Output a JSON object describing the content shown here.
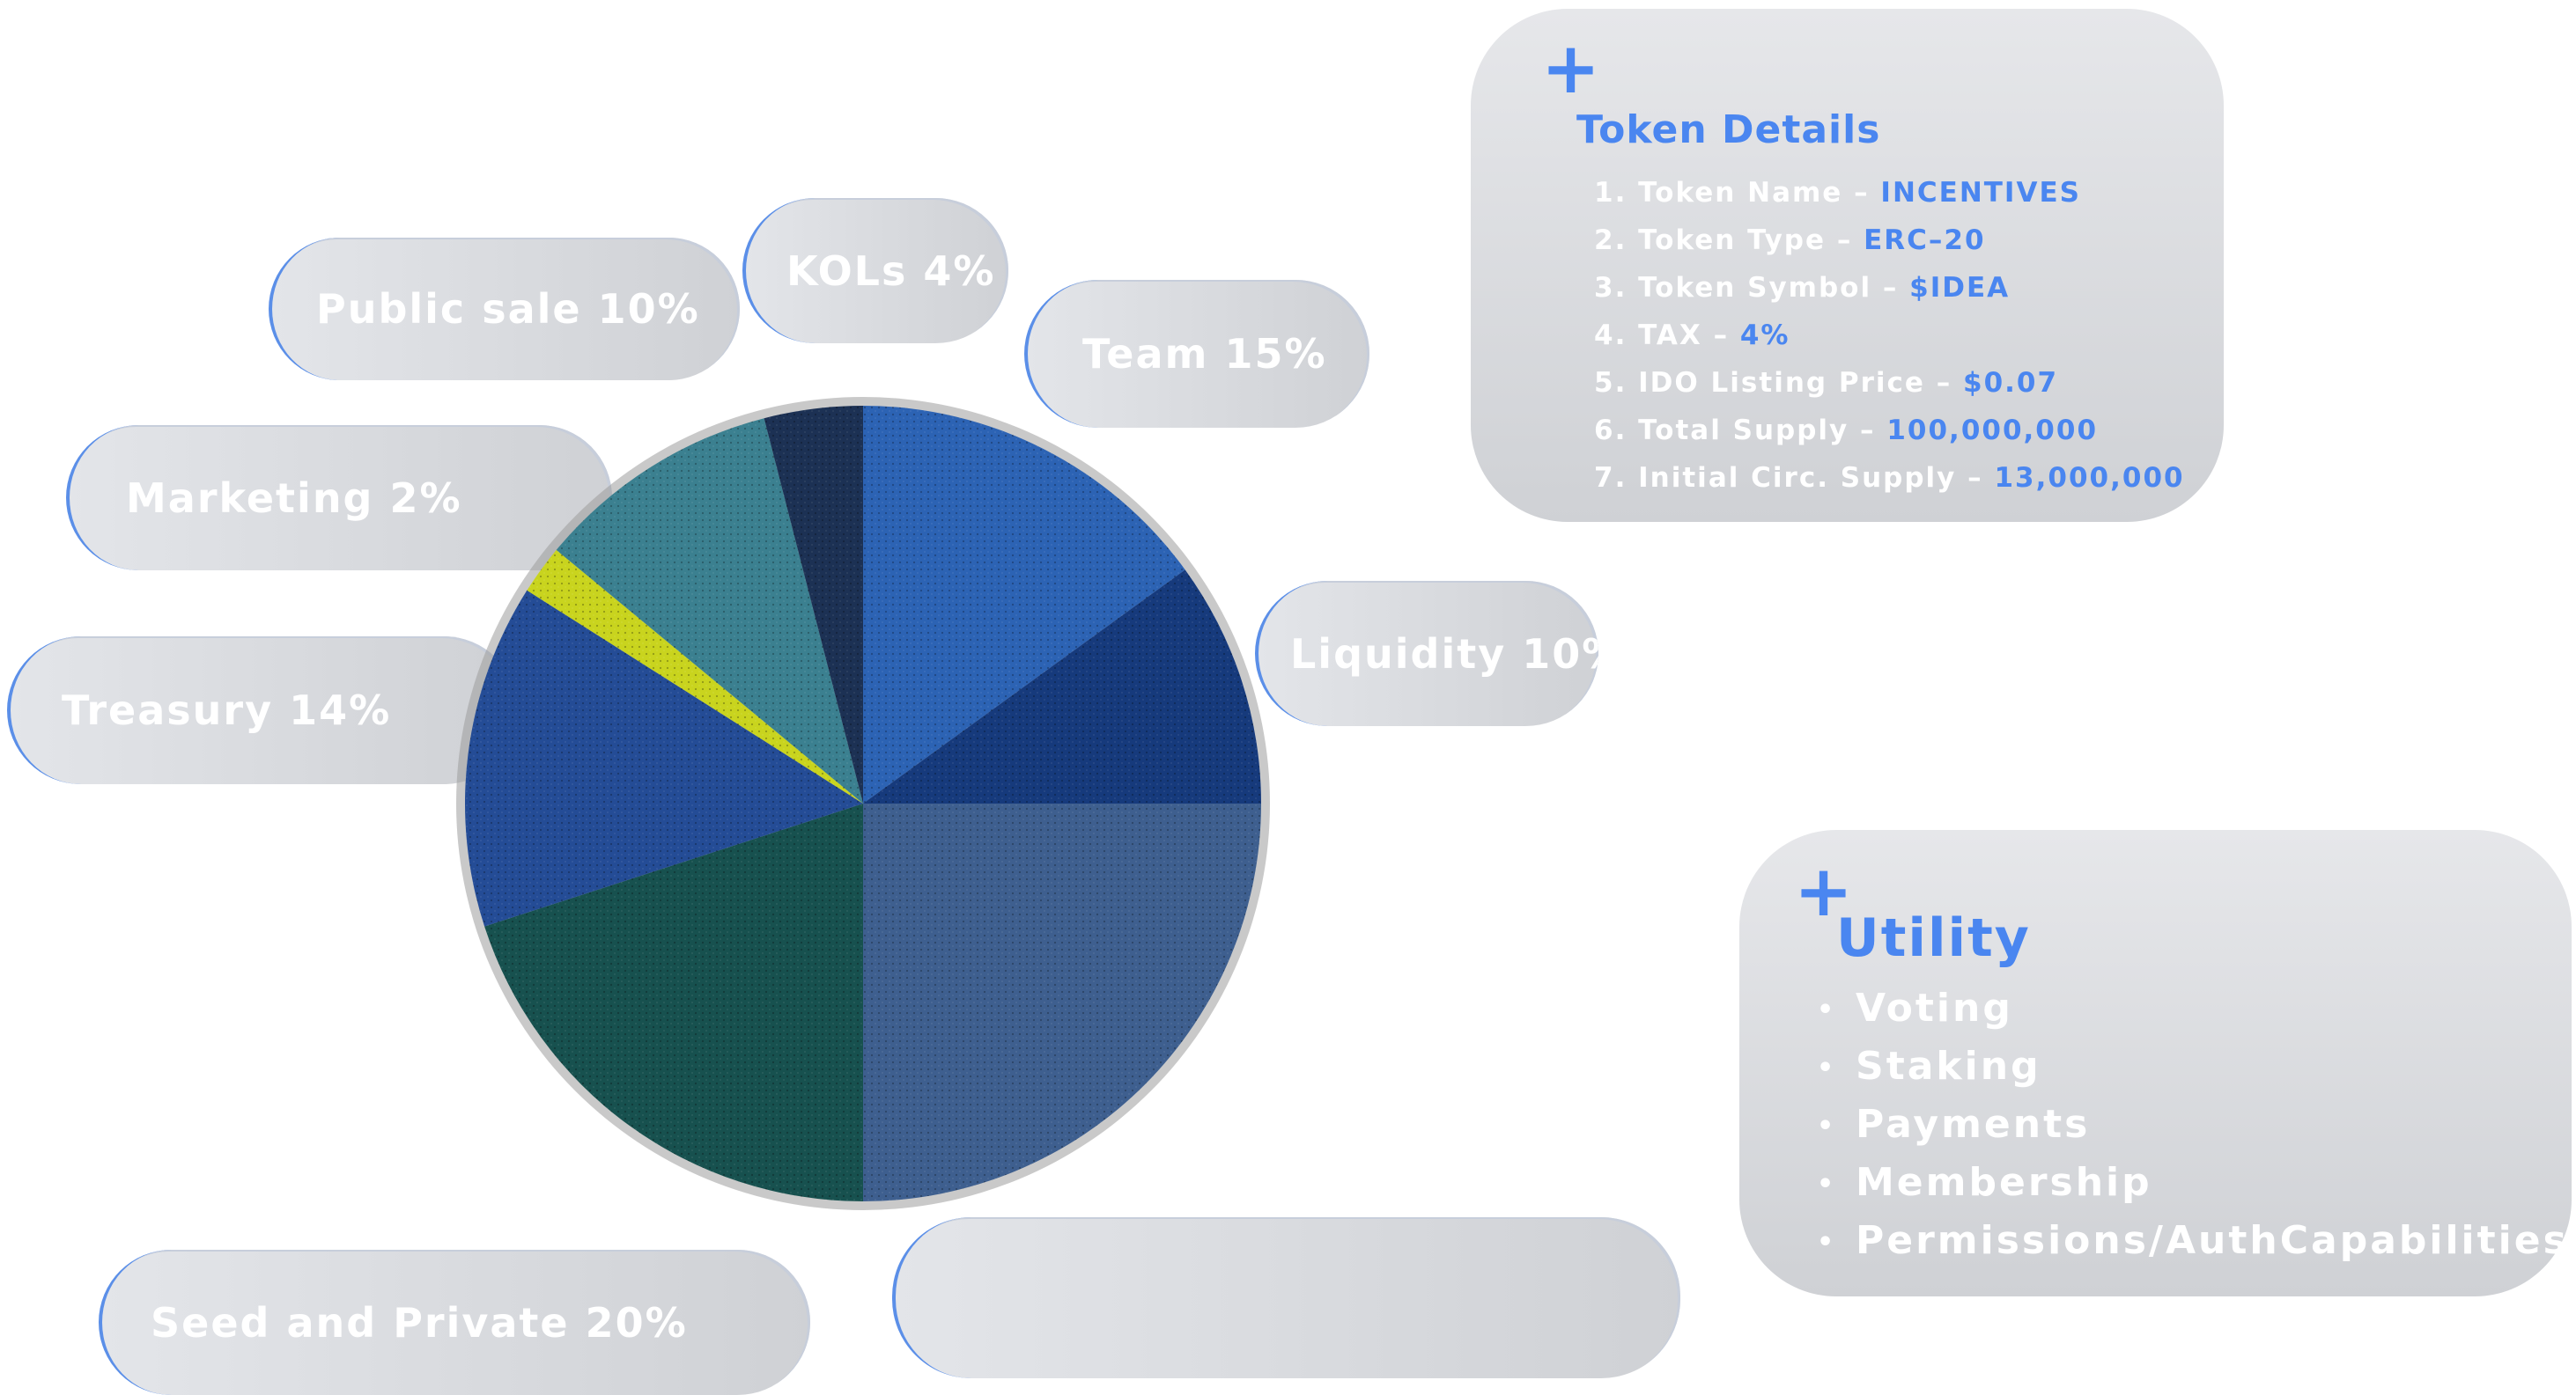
{
  "colors": {
    "accent": "#4a86f0",
    "pill_text": "#ffffff"
  },
  "chart_data": {
    "type": "pie",
    "title": "",
    "slices": [
      {
        "label": "Team",
        "value": 15,
        "color": "#2c63b4",
        "text": "Team  15%"
      },
      {
        "label": "Liquidity",
        "value": 10,
        "color": "#163a7c",
        "text": "Liquidity 10%"
      },
      {
        "label": "",
        "value": 25,
        "color": "#3e5f8f",
        "text": ""
      },
      {
        "label": "Seed and Private",
        "value": 20,
        "color": "#17514f",
        "text": "Seed and Private  20%"
      },
      {
        "label": "Treasury",
        "value": 14,
        "color": "#244c96",
        "text": "Treasury 14%"
      },
      {
        "label": "Marketing",
        "value": 2,
        "color": "#c9d41e",
        "text": "Marketing  2%"
      },
      {
        "label": "Public sale",
        "value": 10,
        "color": "#3b8090",
        "text": "Public sale 10%"
      },
      {
        "label": "KOLs",
        "value": 4,
        "color": "#1c3154",
        "text": "KOLs 4%"
      }
    ]
  },
  "token_details": {
    "plus": "+",
    "title": "Token Details",
    "items": [
      {
        "label": "1. Token Name – ",
        "value": "INCENTIVES"
      },
      {
        "label": "2. Token Type – ",
        "value": "ERC–20"
      },
      {
        "label": "3. Token Symbol – ",
        "value": "$IDEA"
      },
      {
        "label": "4. TAX – ",
        "value": "4%"
      },
      {
        "label": "5. IDO Listing Price – ",
        "value": "$0.07"
      },
      {
        "label": "6. Total Supply –  ",
        "value": "100,000,000"
      },
      {
        "label": "7. Initial Circ. Supply – ",
        "value": "13,000,000"
      }
    ]
  },
  "utility": {
    "plus": "+",
    "title": "Utility",
    "bullet": "•",
    "items": [
      "Voting",
      "Staking",
      "Payments",
      "Membership",
      "Permissions/AuthCapabilities"
    ]
  }
}
